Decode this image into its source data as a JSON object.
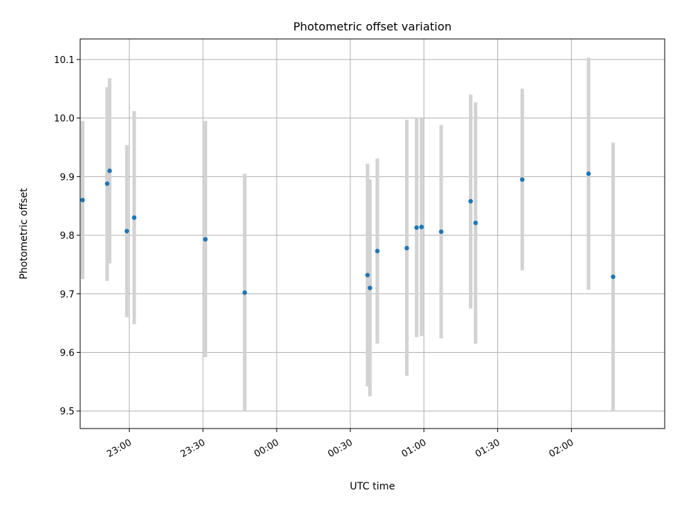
{
  "chart_data": {
    "type": "scatter",
    "title": "Photometric offset variation",
    "xlabel": "UTC time",
    "ylabel": "Photometric offset",
    "x_axis_type": "time",
    "xlim": [
      "22:40",
      "02:38"
    ],
    "ylim": [
      9.47,
      10.135
    ],
    "grid": true,
    "x_ticks": [
      "23:00",
      "23:30",
      "00:00",
      "00:30",
      "01:00",
      "01:30",
      "02:00"
    ],
    "y_ticks": [
      "9.5",
      "9.6",
      "9.7",
      "9.8",
      "9.9",
      "10.0",
      "10.1"
    ],
    "y_tick_values": [
      9.5,
      9.6,
      9.7,
      9.8,
      9.9,
      10.0,
      10.1
    ],
    "colors": {
      "point": "#1f77b4",
      "errorbar": "#d3d3d3",
      "grid": "#b0b0b0"
    },
    "points": [
      {
        "x": "22:41",
        "y": 9.86,
        "ylow": 9.725,
        "yhigh": 9.995
      },
      {
        "x": "22:51",
        "y": 9.888,
        "ylow": 9.722,
        "yhigh": 10.053
      },
      {
        "x": "22:52",
        "y": 9.91,
        "ylow": 9.752,
        "yhigh": 10.068
      },
      {
        "x": "22:59",
        "y": 9.807,
        "ylow": 9.66,
        "yhigh": 9.954
      },
      {
        "x": "23:02",
        "y": 9.83,
        "ylow": 9.648,
        "yhigh": 10.012
      },
      {
        "x": "23:31",
        "y": 9.793,
        "ylow": 9.592,
        "yhigh": 9.995
      },
      {
        "x": "23:47",
        "y": 9.702,
        "ylow": 9.5,
        "yhigh": 9.905
      },
      {
        "x": "00:37",
        "y": 9.732,
        "ylow": 9.542,
        "yhigh": 9.922
      },
      {
        "x": "00:38",
        "y": 9.71,
        "ylow": 9.525,
        "yhigh": 9.895
      },
      {
        "x": "00:41",
        "y": 9.773,
        "ylow": 9.615,
        "yhigh": 9.931
      },
      {
        "x": "00:53",
        "y": 9.778,
        "ylow": 9.56,
        "yhigh": 9.997
      },
      {
        "x": "00:57",
        "y": 9.813,
        "ylow": 9.626,
        "yhigh": 10.0
      },
      {
        "x": "00:59",
        "y": 9.814,
        "ylow": 9.628,
        "yhigh": 10.0
      },
      {
        "x": "01:07",
        "y": 9.806,
        "ylow": 9.624,
        "yhigh": 9.988
      },
      {
        "x": "01:19",
        "y": 9.858,
        "ylow": 9.675,
        "yhigh": 10.04
      },
      {
        "x": "01:21",
        "y": 9.821,
        "ylow": 9.615,
        "yhigh": 10.027
      },
      {
        "x": "01:40",
        "y": 9.895,
        "ylow": 9.74,
        "yhigh": 10.05
      },
      {
        "x": "02:07",
        "y": 9.905,
        "ylow": 9.707,
        "yhigh": 10.103
      },
      {
        "x": "02:17",
        "y": 9.729,
        "ylow": 9.5,
        "yhigh": 9.958
      }
    ]
  }
}
